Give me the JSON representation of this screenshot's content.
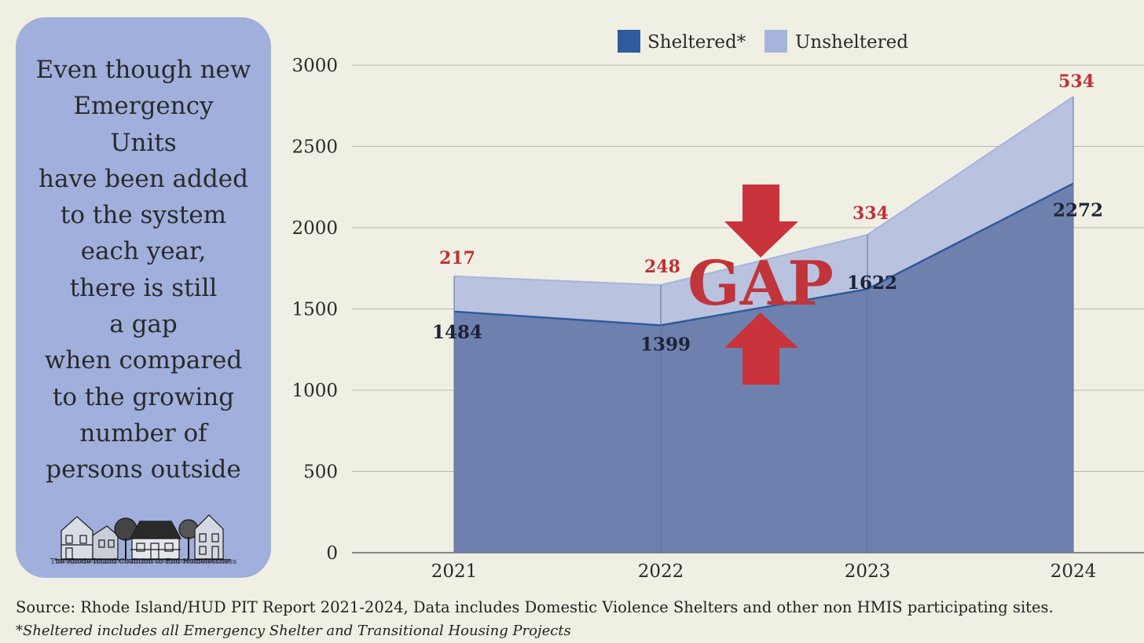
{
  "side_panel": {
    "lines": [
      "Even though new",
      "Emergency",
      "Units",
      "have been added",
      "to the system",
      "each year,",
      "there is still",
      "a gap",
      "when compared",
      "to the growing",
      "number of",
      "persons outside"
    ],
    "logo_caption": "The Rhode Island Coalition to End Homelessness"
  },
  "chart_data": {
    "type": "area",
    "stacked": true,
    "title": "",
    "xlabel": "",
    "ylabel": "",
    "categories": [
      "2021",
      "2022",
      "2023",
      "2024"
    ],
    "ylim": [
      0,
      3000
    ],
    "yticks": [
      "0",
      "500",
      "1000",
      "1500",
      "2000",
      "2500",
      "3000"
    ],
    "grid": true,
    "legend_position": "top",
    "series": [
      {
        "name": "Sheltered*",
        "values": [
          1484,
          1399,
          1622,
          2272
        ],
        "color": "#6e80ae",
        "line_color": "#2f5c9c"
      },
      {
        "name": "Unsheltered",
        "values": [
          217,
          248,
          334,
          534
        ],
        "color": "#b9c2de",
        "line_color": "#a7b4dc"
      }
    ],
    "annotation": {
      "text": "GAP",
      "color": "#c0343a"
    }
  },
  "footer": {
    "source": "Source: Rhode Island/HUD PIT Report 2021-2024, Data includes Domestic Violence Shelters and other non HMIS participating sites.",
    "footnote": "*Sheltered includes all Emergency Shelter and Transitional Housing Projects"
  }
}
